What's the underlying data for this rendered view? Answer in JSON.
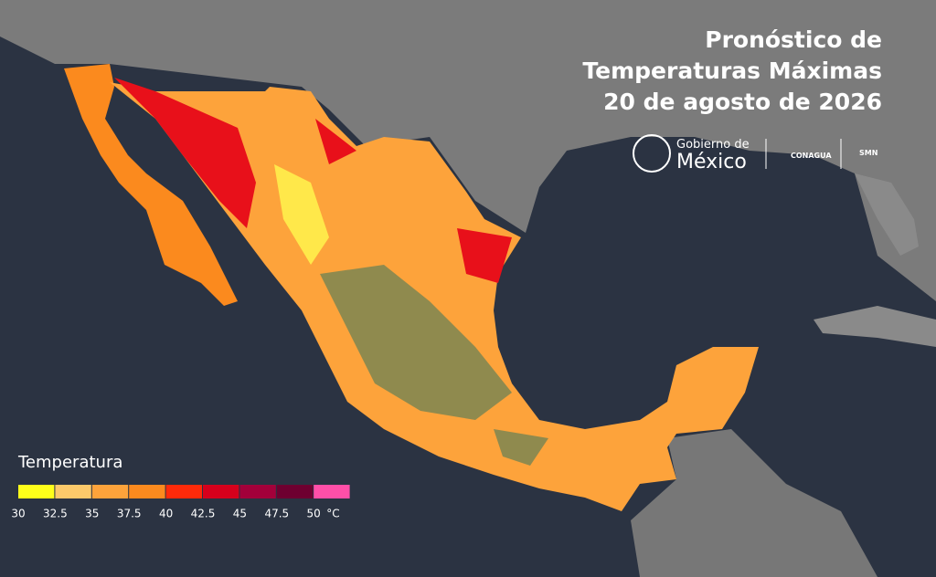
{
  "title": {
    "lines": [
      "Pronóstico de",
      "Temperaturas Máximas",
      "20 de agosto de 2026"
    ]
  },
  "logos": {
    "gobierno": "Gobierno de",
    "mexico": "México",
    "conagua": "CONAGUA",
    "smn": "SMN"
  },
  "legend": {
    "title": "Temperatura",
    "unit": "°C",
    "ticks": [
      30,
      32.5,
      35,
      37.5,
      40,
      42.5,
      45,
      47.5,
      50
    ],
    "colors": [
      "#ffff1a",
      "#fcc96a",
      "#fda33b",
      "#fb8a1e",
      "#fe2a0a",
      "#d6001c",
      "#a3003a",
      "#6e0030",
      "#ff4fa8"
    ]
  }
}
